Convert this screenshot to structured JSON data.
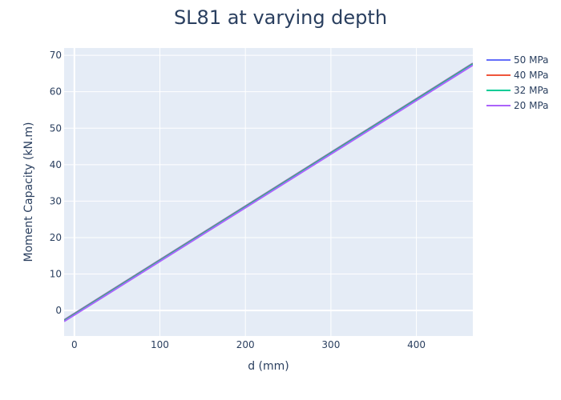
{
  "chart_data": {
    "type": "line",
    "title": "SL81 at varying depth",
    "xlabel": "d (mm)",
    "ylabel": "Moment Capacity (kN.m)",
    "xlim": [
      -12,
      466
    ],
    "ylim": [
      -7,
      72
    ],
    "xticks": [
      0,
      100,
      200,
      300,
      400
    ],
    "yticks": [
      0,
      10,
      20,
      30,
      40,
      50,
      60,
      70
    ],
    "grid": true,
    "legend_position": "top-right",
    "series": [
      {
        "name": "50 MPa",
        "color": "#636efa",
        "x": [
          -12,
          466
        ],
        "y": [
          -2.6,
          67.8
        ]
      },
      {
        "name": "40 MPa",
        "color": "#EF553B",
        "x": [
          -12,
          466
        ],
        "y": [
          -2.7,
          67.7
        ]
      },
      {
        "name": "32 MPa",
        "color": "#00cc96",
        "x": [
          -12,
          466
        ],
        "y": [
          -2.8,
          67.6
        ]
      },
      {
        "name": "20 MPa",
        "color": "#ab63fa",
        "x": [
          -12,
          466
        ],
        "y": [
          -3.0,
          67.3
        ]
      }
    ]
  },
  "colors": {
    "plot_bg": "#e5ecf6",
    "grid": "#ffffff",
    "text": "#2a3f5f"
  }
}
